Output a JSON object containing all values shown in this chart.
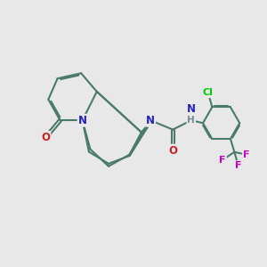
{
  "background_color": "#e8e8e8",
  "bond_color": "#4a7a6a",
  "bond_width": 1.5,
  "atom_colors": {
    "N": "#2222cc",
    "O": "#cc2222",
    "F": "#cc00cc",
    "Cl": "#00cc00",
    "H": "#778899",
    "C": "#000000"
  },
  "font_size_atom": 8.5,
  "figsize": [
    3.0,
    3.0
  ],
  "dpi": 100
}
